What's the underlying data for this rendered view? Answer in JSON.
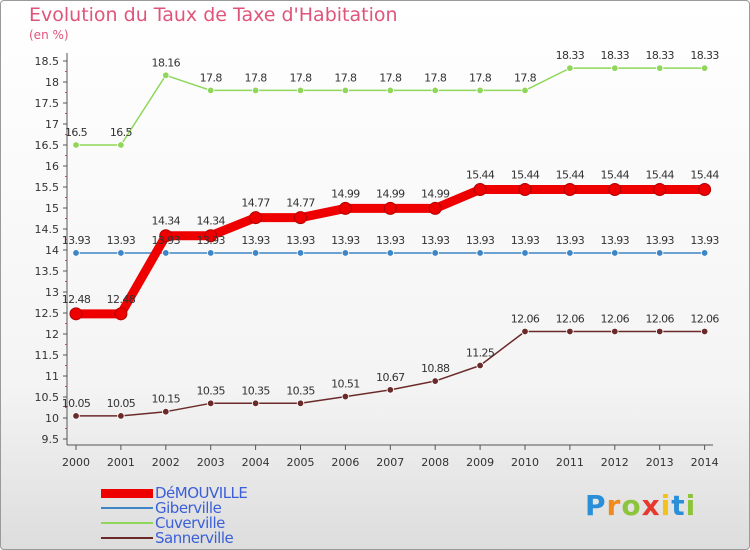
{
  "chart_data": {
    "type": "line",
    "title": "Evolution du Taux de Taxe d'Habitation",
    "ylabel": "(en %)",
    "x": [
      "2000",
      "2001",
      "2002",
      "2003",
      "2004",
      "2005",
      "2006",
      "2007",
      "2008",
      "2009",
      "2010",
      "2011",
      "2012",
      "2013",
      "2014"
    ],
    "ylim": [
      9.5,
      18.5
    ],
    "yticks": [
      "9.5",
      "10",
      "10.5",
      "11",
      "11.5",
      "12",
      "12.5",
      "13",
      "13.5",
      "14",
      "14.5",
      "15",
      "15.5",
      "16",
      "16.5",
      "17",
      "17.5",
      "18",
      "18.5"
    ],
    "grid": false,
    "legend_position": "bottom-left",
    "series": [
      {
        "name": "DéMOUVILLE",
        "color": "#ee0000",
        "values": [
          12.48,
          12.48,
          14.34,
          14.34,
          14.77,
          14.77,
          14.99,
          14.99,
          14.99,
          15.44,
          15.44,
          15.44,
          15.44,
          15.44,
          15.44
        ],
        "labels": [
          "12.48",
          "12.48",
          "14.34",
          "14.34",
          "14.77",
          "14.77",
          "14.99",
          "14.99",
          "14.99",
          "15.44",
          "15.44",
          "15.44",
          "15.44",
          "15.44",
          "15.44"
        ]
      },
      {
        "name": "Giberville",
        "color": "#3d85c6",
        "values": [
          13.93,
          13.93,
          13.93,
          13.93,
          13.93,
          13.93,
          13.93,
          13.93,
          13.93,
          13.93,
          13.93,
          13.93,
          13.93,
          13.93,
          13.93
        ],
        "labels": [
          "13.93",
          "13.93",
          "13.93",
          "13.93",
          "13.93",
          "13.93",
          "13.93",
          "13.93",
          "13.93",
          "13.93",
          "13.93",
          "13.93",
          "13.93",
          "13.93",
          "13.93"
        ]
      },
      {
        "name": "Cuverville",
        "color": "#8fd65a",
        "values": [
          16.5,
          16.5,
          18.16,
          17.8,
          17.8,
          17.8,
          17.8,
          17.8,
          17.8,
          17.8,
          17.8,
          18.33,
          18.33,
          18.33,
          18.33
        ],
        "labels": [
          "16.5",
          "16.5",
          "18.16",
          "17.8",
          "17.8",
          "17.8",
          "17.8",
          "17.8",
          "17.8",
          "17.8",
          "17.8",
          "18.33",
          "18.33",
          "18.33",
          "18.33"
        ]
      },
      {
        "name": "Sannerville",
        "color": "#6b2a2a",
        "values": [
          10.05,
          10.05,
          10.15,
          10.35,
          10.35,
          10.35,
          10.51,
          10.67,
          10.88,
          11.25,
          12.06,
          12.06,
          12.06,
          12.06,
          12.06
        ],
        "labels": [
          "10.05",
          "10.05",
          "10.15",
          "10.35",
          "10.35",
          "10.35",
          "10.51",
          "10.67",
          "10.88",
          "11.25",
          "12.06",
          "12.06",
          "12.06",
          "12.06",
          "12.06"
        ]
      }
    ]
  },
  "logo": {
    "text": "Proxiti",
    "letters": [
      "P",
      "r",
      "o",
      "x",
      "i",
      "t",
      "i"
    ],
    "colors": [
      "#2a8fd8",
      "#f08a1c",
      "#8cc43c",
      "#e63a2e",
      "#f2c21a",
      "#2a8fd8",
      "#8cc43c"
    ]
  }
}
